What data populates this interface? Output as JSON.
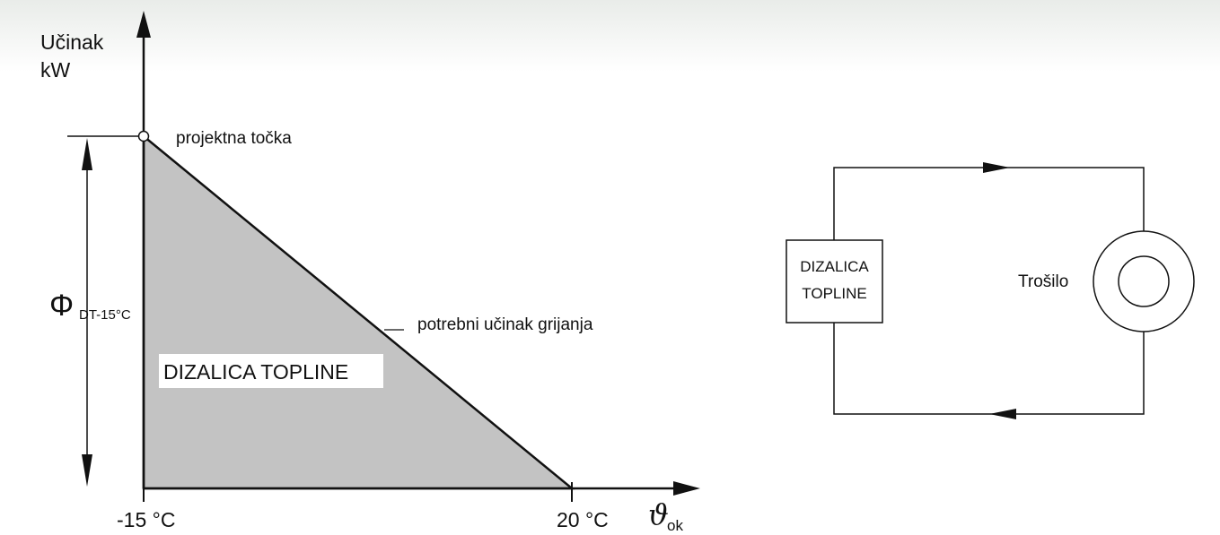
{
  "chart_diagram": {
    "y_axis_label": [
      "Učinak",
      "kW"
    ],
    "design_point": "projektna točka",
    "phi_symbol": "Φ",
    "phi_subscript": "DT-15°C",
    "curve_label": "potrebni učinak grijanja",
    "area_label": "DIZALICA TOPLINE",
    "x_start_label": "-15 °C",
    "x_end_label": "20 °C",
    "x_axis_symbol": "ϑ",
    "x_axis_subscript": "ok"
  },
  "circuit": {
    "heat_pump": [
      "DIZALICA",
      "TOPLINE"
    ],
    "consumer": "Trošilo"
  }
}
